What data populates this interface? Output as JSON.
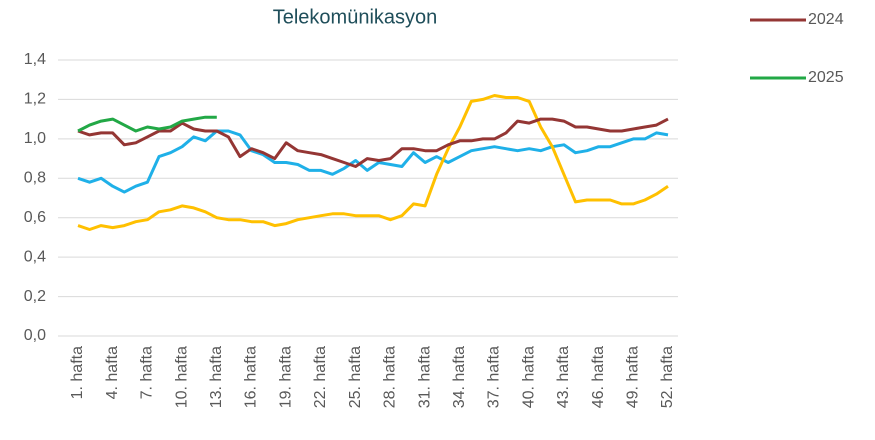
{
  "chart_data": {
    "type": "line",
    "title": "Telekomünikasyon",
    "categories": [
      "1. hafta",
      null,
      null,
      "4. hafta",
      null,
      null,
      "7. hafta",
      null,
      null,
      "10. hafta",
      null,
      null,
      "13. hafta",
      null,
      null,
      "16. hafta",
      null,
      null,
      "19. hafta",
      null,
      null,
      "22. hafta",
      null,
      null,
      "25. hafta",
      null,
      null,
      "28. hafta",
      null,
      null,
      "31. hafta",
      null,
      null,
      "34. hafta",
      null,
      null,
      "37. hafta",
      null,
      null,
      "40. hafta",
      null,
      null,
      "43. hafta",
      null,
      null,
      "46. hafta",
      null,
      null,
      "49. hafta",
      null,
      null,
      "52. hafta"
    ],
    "series": [
      {
        "color": "#1fb0e8",
        "values": [
          0.8,
          0.78,
          0.8,
          0.76,
          0.73,
          0.76,
          0.78,
          0.91,
          0.93,
          0.96,
          1.01,
          0.99,
          1.04,
          1.04,
          1.02,
          0.94,
          0.92,
          0.88,
          0.88,
          0.87,
          0.84,
          0.84,
          0.82,
          0.85,
          0.89,
          0.84,
          0.88,
          0.87,
          0.86,
          0.93,
          0.88,
          0.91,
          0.88,
          0.91,
          0.94,
          0.95,
          0.96,
          0.95,
          0.94,
          0.95,
          0.94,
          0.96,
          0.97,
          0.93,
          0.94,
          0.96,
          0.96,
          0.98,
          1.0,
          1.0,
          1.03,
          1.02
        ]
      },
      {
        "color": "#ffc000",
        "values": [
          0.56,
          0.54,
          0.56,
          0.55,
          0.56,
          0.58,
          0.59,
          0.63,
          0.64,
          0.66,
          0.65,
          0.63,
          0.6,
          0.59,
          0.59,
          0.58,
          0.58,
          0.56,
          0.57,
          0.59,
          0.6,
          0.61,
          0.62,
          0.62,
          0.61,
          0.61,
          0.61,
          0.59,
          0.61,
          0.67,
          0.66,
          0.82,
          0.95,
          1.06,
          1.19,
          1.2,
          1.22,
          1.21,
          1.21,
          1.19,
          1.06,
          0.96,
          0.82,
          0.68,
          0.69,
          0.69,
          0.69,
          0.67,
          0.67,
          0.69,
          0.72,
          0.76
        ]
      },
      {
        "name": "2024",
        "color": "#943634",
        "values": [
          1.04,
          1.02,
          1.03,
          1.03,
          0.97,
          0.98,
          1.01,
          1.04,
          1.04,
          1.08,
          1.05,
          1.04,
          1.04,
          1.01,
          0.91,
          0.95,
          0.93,
          0.9,
          0.98,
          0.94,
          0.93,
          0.92,
          0.9,
          0.88,
          0.86,
          0.9,
          0.89,
          0.9,
          0.95,
          0.95,
          0.94,
          0.94,
          0.97,
          0.99,
          0.99,
          1.0,
          1.0,
          1.03,
          1.09,
          1.08,
          1.1,
          1.1,
          1.09,
          1.06,
          1.06,
          1.05,
          1.04,
          1.04,
          1.05,
          1.06,
          1.07,
          1.1
        ]
      },
      {
        "name": "2025",
        "color": "#22a846",
        "values": [
          1.04,
          1.07,
          1.09,
          1.1,
          1.07,
          1.04,
          1.06,
          1.05,
          1.06,
          1.09,
          1.1,
          1.11,
          1.11,
          null,
          null,
          null,
          null,
          null,
          null,
          null,
          null,
          null,
          null,
          null,
          null,
          null,
          null,
          null,
          null,
          null,
          null,
          null,
          null,
          null,
          null,
          null,
          null,
          null,
          null,
          null,
          null,
          null,
          null,
          null,
          null,
          null,
          null,
          null,
          null,
          null,
          null,
          null
        ]
      }
    ],
    "ylim": [
      0,
      1.4
    ],
    "yticks": [
      {
        "value": 0,
        "label": "0,0"
      },
      {
        "value": 0.2,
        "label": "0,2"
      },
      {
        "value": 0.4,
        "label": "0,4"
      },
      {
        "value": 0.6,
        "label": "0,6"
      },
      {
        "value": 0.8,
        "label": "0,8"
      },
      {
        "value": 1.0,
        "label": "1,0"
      },
      {
        "value": 1.2,
        "label": "1,2"
      },
      {
        "value": 1.4,
        "label": "1,4"
      }
    ],
    "grid": true,
    "legend": "right"
  }
}
